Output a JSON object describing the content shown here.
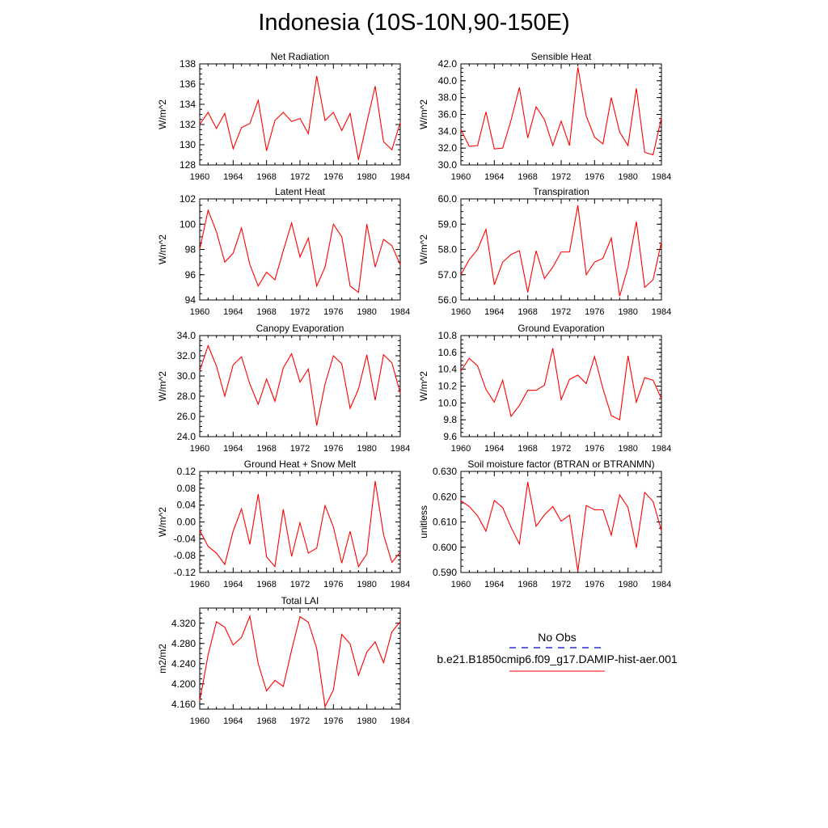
{
  "title": "Indonesia (10S-10N,90-150E)",
  "colors": {
    "model": "#ff0000",
    "obs": "#0000cc",
    "axis": "#000000"
  },
  "legend": {
    "obs_label": "No Obs",
    "model_label": "b.e21.B1850cmip6.f09_g17.DAMIP-hist-aer.001"
  },
  "x_tick_labels": [
    "1960",
    "1964",
    "1968",
    "1972",
    "1976",
    "1980",
    "1984"
  ],
  "chart_data": [
    {
      "type": "line",
      "title": "Net Radiation",
      "ylabel": "W/m^2",
      "xlim": [
        1960,
        1984
      ],
      "ylim": [
        128,
        138
      ],
      "yticks": [
        "128",
        "130",
        "132",
        "134",
        "136",
        "138"
      ],
      "x": [
        1960,
        1961,
        1962,
        1963,
        1964,
        1965,
        1966,
        1967,
        1968,
        1969,
        1970,
        1971,
        1972,
        1973,
        1974,
        1975,
        1976,
        1977,
        1978,
        1979,
        1980,
        1981,
        1982,
        1983,
        1984
      ],
      "series": [
        {
          "values": [
            132.0,
            133.2,
            131.6,
            133.1,
            129.6,
            131.7,
            132.1,
            134.4,
            129.4,
            132.4,
            133.2,
            132.3,
            132.6,
            131.1,
            136.8,
            132.4,
            133.2,
            131.4,
            133.1,
            128.5,
            132.2,
            135.8,
            130.3,
            129.5,
            132.2
          ]
        }
      ]
    },
    {
      "type": "line",
      "title": "Sensible Heat",
      "ylabel": "W/m^2",
      "xlim": [
        1960,
        1984
      ],
      "ylim": [
        30,
        42
      ],
      "yticks": [
        "30.0",
        "32.0",
        "34.0",
        "36.0",
        "38.0",
        "40.0",
        "42.0"
      ],
      "x": [
        1960,
        1961,
        1962,
        1963,
        1964,
        1965,
        1966,
        1967,
        1968,
        1969,
        1970,
        1971,
        1972,
        1973,
        1974,
        1975,
        1976,
        1977,
        1978,
        1979,
        1980,
        1981,
        1982,
        1983,
        1984
      ],
      "series": [
        {
          "values": [
            34.2,
            32.2,
            32.3,
            36.3,
            31.9,
            32.0,
            35.3,
            39.2,
            33.2,
            36.9,
            35.4,
            32.3,
            35.2,
            32.3,
            41.6,
            35.8,
            33.3,
            32.5,
            38.0,
            33.9,
            32.3,
            39.1,
            31.5,
            31.2,
            35.6
          ]
        }
      ]
    },
    {
      "type": "line",
      "title": "Latent Heat",
      "ylabel": "W/m^2",
      "xlim": [
        1960,
        1984
      ],
      "ylim": [
        94,
        102
      ],
      "yticks": [
        "94",
        "96",
        "98",
        "100",
        "102"
      ],
      "x": [
        1960,
        1961,
        1962,
        1963,
        1964,
        1965,
        1966,
        1967,
        1968,
        1969,
        1970,
        1971,
        1972,
        1973,
        1974,
        1975,
        1976,
        1977,
        1978,
        1979,
        1980,
        1981,
        1982,
        1983,
        1984
      ],
      "series": [
        {
          "values": [
            98.0,
            101.1,
            99.4,
            97.0,
            97.7,
            99.7,
            96.8,
            95.1,
            96.2,
            95.6,
            97.9,
            100.1,
            97.4,
            98.9,
            95.1,
            96.6,
            100.0,
            99.0,
            95.1,
            94.6,
            100.0,
            96.6,
            98.8,
            98.3,
            96.8
          ]
        }
      ]
    },
    {
      "type": "line",
      "title": "Transpiration",
      "ylabel": "W/m^2",
      "xlim": [
        1960,
        1984
      ],
      "ylim": [
        56,
        60
      ],
      "yticks": [
        "56.0",
        "57.0",
        "58.0",
        "59.0",
        "60.0"
      ],
      "x": [
        1960,
        1961,
        1962,
        1963,
        1964,
        1965,
        1966,
        1967,
        1968,
        1969,
        1970,
        1971,
        1972,
        1973,
        1974,
        1975,
        1976,
        1977,
        1978,
        1979,
        1980,
        1981,
        1982,
        1983,
        1984
      ],
      "series": [
        {
          "values": [
            57.0,
            57.6,
            58.0,
            58.8,
            56.6,
            57.5,
            57.8,
            57.95,
            56.3,
            57.95,
            56.85,
            57.3,
            57.9,
            57.9,
            59.75,
            57.0,
            57.5,
            57.65,
            58.45,
            56.15,
            57.3,
            59.1,
            56.5,
            56.8,
            58.3
          ]
        }
      ]
    },
    {
      "type": "line",
      "title": "Canopy Evaporation",
      "ylabel": "W/m^2",
      "xlim": [
        1960,
        1984
      ],
      "ylim": [
        24,
        34
      ],
      "yticks": [
        "24.0",
        "26.0",
        "28.0",
        "30.0",
        "32.0",
        "34.0"
      ],
      "x": [
        1960,
        1961,
        1962,
        1963,
        1964,
        1965,
        1966,
        1967,
        1968,
        1969,
        1970,
        1971,
        1972,
        1973,
        1974,
        1975,
        1976,
        1977,
        1978,
        1979,
        1980,
        1981,
        1982,
        1983,
        1984
      ],
      "series": [
        {
          "values": [
            30.5,
            33.0,
            31.0,
            28.0,
            31.1,
            31.9,
            29.2,
            27.2,
            29.7,
            27.5,
            30.8,
            32.2,
            29.4,
            30.7,
            25.1,
            29.2,
            32.0,
            31.2,
            26.8,
            28.7,
            32.1,
            27.6,
            32.1,
            31.3,
            28.3
          ]
        }
      ]
    },
    {
      "type": "line",
      "title": "Ground Evaporation",
      "ylabel": "W/m^2",
      "xlim": [
        1960,
        1984
      ],
      "ylim": [
        9.6,
        10.8
      ],
      "yticks": [
        "9.6",
        "9.8",
        "10.0",
        "10.2",
        "10.4",
        "10.6",
        "10.8"
      ],
      "x": [
        1960,
        1961,
        1962,
        1963,
        1964,
        1965,
        1966,
        1967,
        1968,
        1969,
        1970,
        1971,
        1972,
        1973,
        1974,
        1975,
        1976,
        1977,
        1978,
        1979,
        1980,
        1981,
        1982,
        1983,
        1984
      ],
      "series": [
        {
          "values": [
            10.38,
            10.53,
            10.44,
            10.16,
            10.01,
            10.27,
            9.84,
            9.97,
            10.15,
            10.15,
            10.21,
            10.65,
            10.04,
            10.28,
            10.33,
            10.23,
            10.55,
            10.17,
            9.85,
            9.8,
            10.56,
            10.01,
            10.3,
            10.27,
            10.05
          ]
        }
      ]
    },
    {
      "type": "line",
      "title": "Ground Heat + Snow Melt",
      "ylabel": "W/m^2",
      "xlim": [
        1960,
        1984
      ],
      "ylim": [
        -0.12,
        0.12
      ],
      "yticks": [
        "-0.12",
        "-0.08",
        "-0.04",
        "0.00",
        "0.04",
        "0.08",
        "0.12"
      ],
      "x": [
        1960,
        1961,
        1962,
        1963,
        1964,
        1965,
        1966,
        1967,
        1968,
        1969,
        1970,
        1971,
        1972,
        1973,
        1974,
        1975,
        1976,
        1977,
        1978,
        1979,
        1980,
        1981,
        1982,
        1983,
        1984
      ],
      "series": [
        {
          "values": [
            -0.02,
            -0.058,
            -0.074,
            -0.101,
            -0.022,
            0.031,
            -0.053,
            0.066,
            -0.083,
            -0.106,
            0.03,
            -0.082,
            -0.002,
            -0.074,
            -0.062,
            0.039,
            -0.012,
            -0.098,
            -0.022,
            -0.106,
            -0.076,
            0.097,
            -0.03,
            -0.096,
            -0.072
          ]
        }
      ]
    },
    {
      "type": "line",
      "title": "Soil moisture factor (BTRAN or BTRANMN)",
      "ylabel": "unitless",
      "xlim": [
        1960,
        1984
      ],
      "ylim": [
        0.59,
        0.63
      ],
      "yticks": [
        "0.590",
        "0.600",
        "0.610",
        "0.620",
        "0.630"
      ],
      "x": [
        1960,
        1961,
        1962,
        1963,
        1964,
        1965,
        1966,
        1967,
        1968,
        1969,
        1970,
        1971,
        1972,
        1973,
        1974,
        1975,
        1976,
        1977,
        1978,
        1979,
        1980,
        1981,
        1982,
        1983,
        1984
      ],
      "series": [
        {
          "values": [
            0.6184,
            0.6161,
            0.6124,
            0.6063,
            0.6185,
            0.6157,
            0.6079,
            0.6013,
            0.6258,
            0.6083,
            0.6128,
            0.6161,
            0.6103,
            0.6127,
            0.5905,
            0.6165,
            0.6148,
            0.6148,
            0.6048,
            0.6207,
            0.6158,
            0.5998,
            0.6217,
            0.6181,
            0.6065
          ]
        }
      ]
    },
    {
      "type": "line",
      "title": "Total LAI",
      "ylabel": "m2/m2",
      "xlim": [
        1960,
        1984
      ],
      "ylim": [
        4.15,
        4.35
      ],
      "yticks": [
        "4.160",
        "4.200",
        "4.240",
        "4.280",
        "4.320"
      ],
      "x": [
        1960,
        1961,
        1962,
        1963,
        1964,
        1965,
        1966,
        1967,
        1968,
        1969,
        1970,
        1971,
        1972,
        1973,
        1974,
        1975,
        1976,
        1977,
        1978,
        1979,
        1980,
        1981,
        1982,
        1983,
        1984
      ],
      "series": [
        {
          "values": [
            4.166,
            4.257,
            4.323,
            4.312,
            4.277,
            4.292,
            4.334,
            4.24,
            4.186,
            4.207,
            4.195,
            4.267,
            4.333,
            4.322,
            4.27,
            4.155,
            4.188,
            4.298,
            4.279,
            4.217,
            4.263,
            4.283,
            4.242,
            4.303,
            4.323
          ]
        }
      ]
    }
  ]
}
